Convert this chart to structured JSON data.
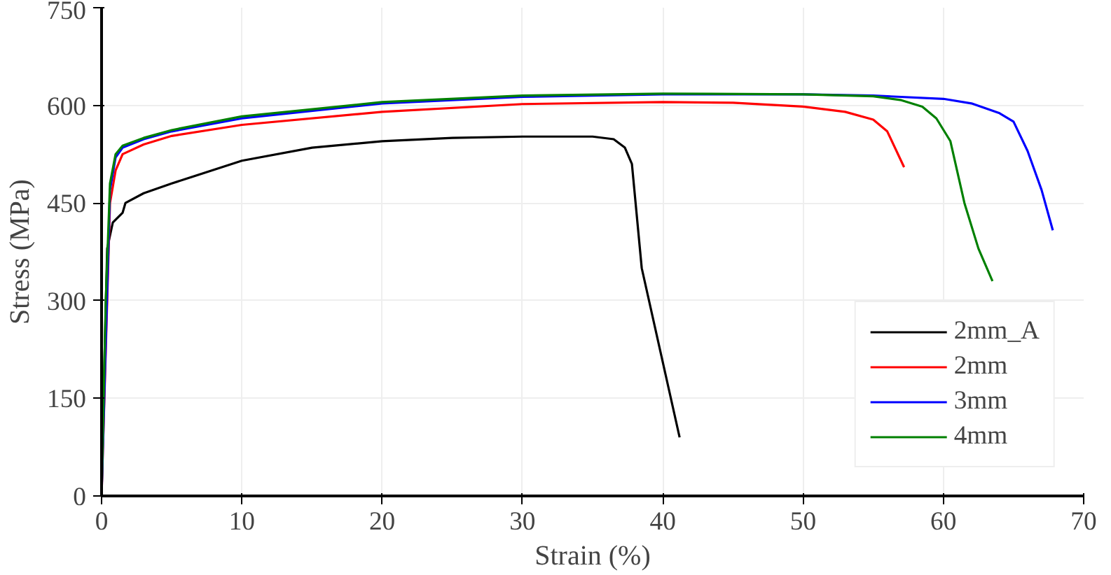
{
  "chart_data": {
    "type": "line",
    "xlabel": "Strain (%)",
    "ylabel": "Stress (MPa)",
    "xlim": [
      0,
      70
    ],
    "ylim": [
      0,
      750
    ],
    "xticks": [
      0,
      10,
      20,
      30,
      40,
      50,
      60,
      70
    ],
    "yticks": [
      0,
      150,
      300,
      450,
      600,
      750
    ],
    "grid": true,
    "legend": "bottom right",
    "marker": "none",
    "line_style": "solid",
    "series": [
      {
        "name": "2mm_A",
        "color": "#000000",
        "x": [
          0,
          0.2,
          0.4,
          0.8,
          1.5,
          1.7,
          3,
          5,
          10,
          15,
          20,
          25,
          30,
          35,
          36.5,
          37.3,
          37.8,
          38.5,
          41.2
        ],
        "values": [
          0,
          200,
          380,
          420,
          435,
          450,
          465,
          480,
          515,
          535,
          545,
          550,
          552,
          552,
          548,
          535,
          510,
          350,
          90
        ]
      },
      {
        "name": "2mm",
        "color": "#ff0000",
        "x": [
          0,
          0.6,
          1,
          1.5,
          3,
          5,
          10,
          20,
          30,
          40,
          45,
          50,
          53,
          55,
          56,
          57.2
        ],
        "values": [
          0,
          450,
          500,
          525,
          540,
          553,
          570,
          590,
          602,
          605,
          604,
          598,
          590,
          578,
          560,
          505
        ]
      },
      {
        "name": "3mm",
        "color": "#0000ff",
        "x": [
          0,
          0.6,
          1,
          1.5,
          3,
          5,
          10,
          20,
          30,
          40,
          50,
          55,
          60,
          62,
          64,
          65,
          66,
          67,
          67.8
        ],
        "values": [
          0,
          470,
          520,
          535,
          548,
          560,
          580,
          603,
          613,
          617,
          617,
          615,
          610,
          603,
          588,
          575,
          530,
          470,
          408
        ]
      },
      {
        "name": "4mm",
        "color": "#008000",
        "x": [
          0,
          0.3,
          0.6,
          1,
          1.5,
          3,
          5,
          10,
          20,
          30,
          40,
          50,
          55,
          57,
          58.5,
          59.5,
          60.5,
          61.5,
          62.5,
          63.5
        ],
        "values": [
          0,
          300,
          480,
          525,
          538,
          550,
          562,
          583,
          605,
          615,
          618,
          617,
          614,
          608,
          598,
          580,
          545,
          450,
          380,
          330
        ]
      }
    ]
  }
}
